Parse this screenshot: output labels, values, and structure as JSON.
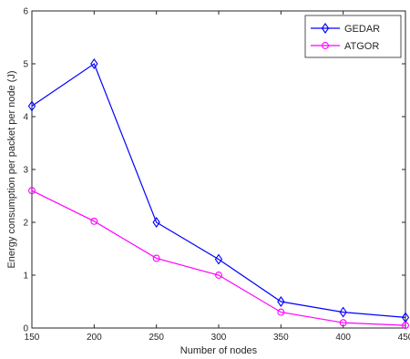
{
  "chart_data": {
    "type": "line",
    "xlabel": "Number of nodes",
    "ylabel": "Energy consumption per packet per node (J)",
    "x": [
      150,
      200,
      250,
      300,
      350,
      400,
      450
    ],
    "xlim": [
      150,
      450
    ],
    "ylim": [
      0,
      6
    ],
    "xticks": [
      "150",
      "200",
      "250",
      "300",
      "350",
      "400",
      "450"
    ],
    "yticks": [
      "0",
      "1",
      "2",
      "3",
      "4",
      "5",
      "6"
    ],
    "grid": false,
    "legend_position": "top-right",
    "series": [
      {
        "name": "GEDAR",
        "color": "#0000ff",
        "marker": "diamond",
        "values": [
          4.2,
          5.0,
          2.0,
          1.3,
          0.5,
          0.3,
          0.2
        ]
      },
      {
        "name": "ATGOR",
        "color": "#ff00ff",
        "marker": "circle",
        "values": [
          2.6,
          2.02,
          1.32,
          1.0,
          0.3,
          0.1,
          0.05
        ]
      }
    ]
  }
}
